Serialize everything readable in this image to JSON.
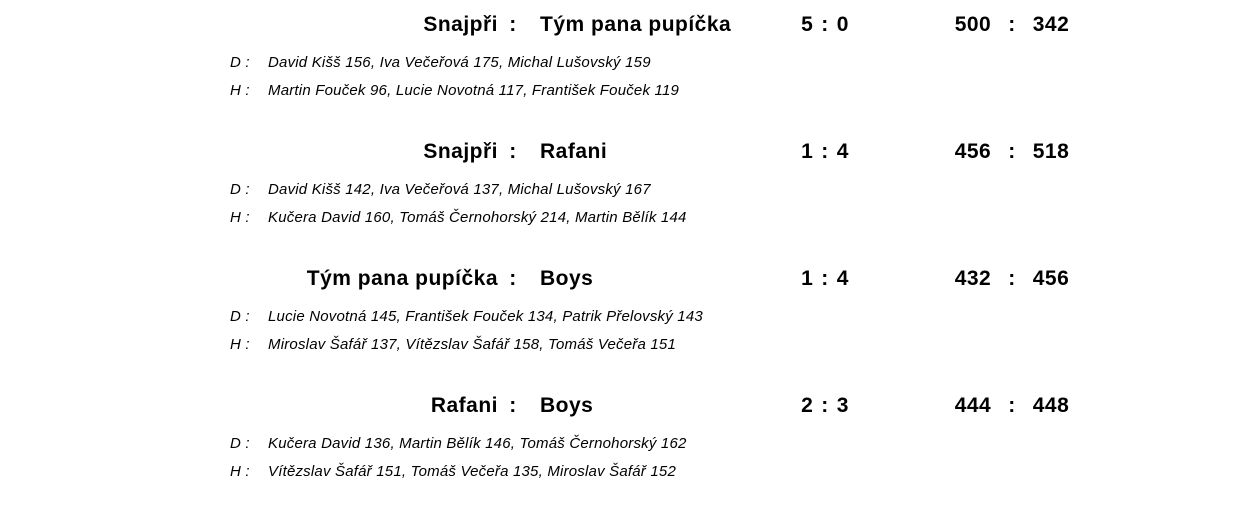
{
  "colors": {
    "background": "#ffffff",
    "text": "#000000"
  },
  "document": {
    "separator": ":",
    "matches": [
      {
        "home": "Snajpři",
        "away": "Tým pana pupíčka",
        "points_home": "5",
        "points_away": "0",
        "pins_home": "500",
        "pins_away": "342",
        "d_label": "D :",
        "d_players": "David Kišš 156, Iva Večeřová 175, Michal Lušovský 159",
        "h_label": "H :",
        "h_players": "Martin Fouček 96, Lucie Novotná 117, František Fouček 119"
      },
      {
        "home": "Snajpři",
        "away": "Rafani",
        "points_home": "1",
        "points_away": "4",
        "pins_home": "456",
        "pins_away": "518",
        "d_label": "D :",
        "d_players": "David Kišš 142, Iva Večeřová 137, Michal Lušovský 167",
        "h_label": "H :",
        "h_players": "Kučera David 160, Tomáš Černohorský 214, Martin Bělík 144"
      },
      {
        "home": "Tým pana pupíčka",
        "away": "Boys",
        "points_home": "1",
        "points_away": "4",
        "pins_home": "432",
        "pins_away": "456",
        "d_label": "D :",
        "d_players": "Lucie Novotná 145, František Fouček 134, Patrik Přelovský 143",
        "h_label": "H :",
        "h_players": "Miroslav Šafář 137, Vítězslav Šafář 158, Tomáš Večeřa 151"
      },
      {
        "home": "Rafani",
        "away": "Boys",
        "points_home": "2",
        "points_away": "3",
        "pins_home": "444",
        "pins_away": "448",
        "d_label": "D :",
        "d_players": "Kučera David 136, Martin Bělík 146, Tomáš Černohorský 162",
        "h_label": "H :",
        "h_players": "Vítězslav Šafář 151, Tomáš Večeřa 135, Miroslav Šafář 152"
      }
    ]
  }
}
